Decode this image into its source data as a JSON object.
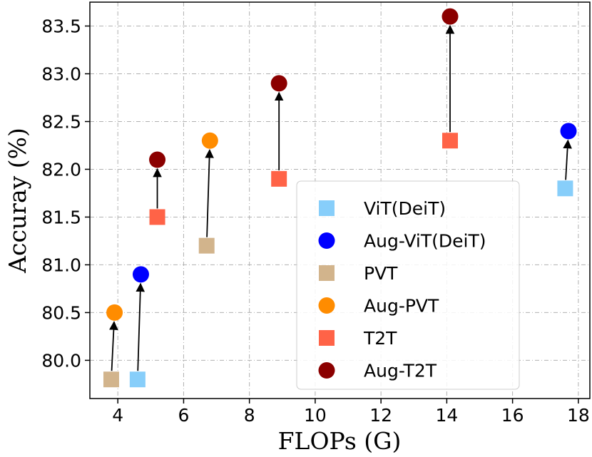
{
  "chart_data": {
    "type": "scatter",
    "xlabel": "FLOPs (G)",
    "ylabel": "Accuray (%)",
    "xlim": [
      3.15,
      18.35
    ],
    "ylim": [
      79.6,
      83.75
    ],
    "xticks": [
      4,
      6,
      8,
      10,
      12,
      14,
      16,
      18
    ],
    "yticks": [
      80.0,
      80.5,
      81.0,
      81.5,
      82.0,
      82.5,
      83.0,
      83.5
    ],
    "grid": true,
    "legend_position": "lower-right",
    "series": [
      {
        "name": "ViT(DeiT)",
        "marker": "square",
        "color": "#87cefa",
        "points": [
          {
            "x": 4.6,
            "y": 79.8
          },
          {
            "x": 17.6,
            "y": 81.8
          }
        ]
      },
      {
        "name": "Aug-ViT(DeiT)",
        "marker": "circle",
        "color": "#0000ff",
        "points": [
          {
            "x": 4.7,
            "y": 80.9
          },
          {
            "x": 17.7,
            "y": 82.4
          }
        ]
      },
      {
        "name": "PVT",
        "marker": "square",
        "color": "#d2b48c",
        "points": [
          {
            "x": 3.8,
            "y": 79.8
          },
          {
            "x": 6.7,
            "y": 81.2
          }
        ]
      },
      {
        "name": "Aug-PVT",
        "marker": "circle",
        "color": "#ff8c00",
        "points": [
          {
            "x": 3.9,
            "y": 80.5
          },
          {
            "x": 6.8,
            "y": 82.3
          }
        ]
      },
      {
        "name": "T2T",
        "marker": "square",
        "color": "#ff6347",
        "points": [
          {
            "x": 5.2,
            "y": 81.5
          },
          {
            "x": 8.9,
            "y": 81.9
          },
          {
            "x": 14.1,
            "y": 82.3
          }
        ]
      },
      {
        "name": "Aug-T2T",
        "marker": "circle",
        "color": "#8b0000",
        "points": [
          {
            "x": 5.2,
            "y": 82.1
          },
          {
            "x": 8.9,
            "y": 82.9
          },
          {
            "x": 14.1,
            "y": 83.6
          }
        ]
      }
    ],
    "arrows": [
      {
        "from": [
          3.8,
          79.8
        ],
        "to": [
          3.9,
          80.5
        ]
      },
      {
        "from": [
          4.6,
          79.8
        ],
        "to": [
          4.7,
          80.9
        ]
      },
      {
        "from": [
          5.2,
          81.5
        ],
        "to": [
          5.2,
          82.1
        ]
      },
      {
        "from": [
          6.7,
          81.2
        ],
        "to": [
          6.8,
          82.3
        ]
      },
      {
        "from": [
          8.9,
          81.9
        ],
        "to": [
          8.9,
          82.9
        ]
      },
      {
        "from": [
          14.1,
          82.3
        ],
        "to": [
          14.1,
          83.6
        ]
      },
      {
        "from": [
          17.6,
          81.8
        ],
        "to": [
          17.7,
          82.4
        ]
      }
    ]
  }
}
